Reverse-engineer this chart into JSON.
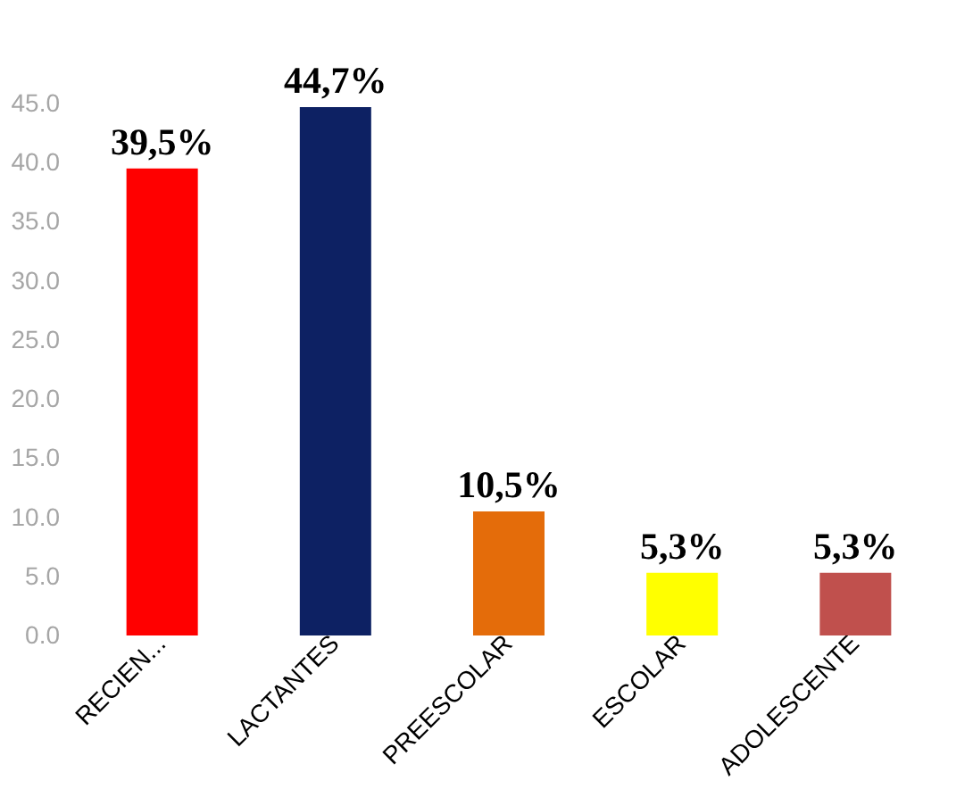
{
  "chart_data": {
    "type": "bar",
    "categories": [
      "RECIEN...",
      "LACTANTES",
      "PREESCOLAR",
      "ESCOLAR",
      "ADOLESCENTE"
    ],
    "values": [
      39.5,
      44.7,
      10.5,
      5.3,
      5.3
    ],
    "colors": [
      "#ff0000",
      "#0d2163",
      "#e46c0a",
      "#ffff00",
      "#c0504d"
    ],
    "value_labels": [
      "39,5%",
      "44,7%",
      "10,5%",
      "5,3%",
      "5,3%"
    ],
    "ylim": [
      0,
      45
    ],
    "yticks": [
      {
        "value": 0,
        "label": "0.0"
      },
      {
        "value": 5,
        "label": "5.0"
      },
      {
        "value": 10,
        "label": "10.0"
      },
      {
        "value": 15,
        "label": "15.0"
      },
      {
        "value": 20,
        "label": "20.0"
      },
      {
        "value": 25,
        "label": "25.0"
      },
      {
        "value": 30,
        "label": "30.0"
      },
      {
        "value": 35,
        "label": "35.0"
      },
      {
        "value": 40,
        "label": "40.0"
      },
      {
        "value": 45,
        "label": "45.0"
      }
    ],
    "grid": false
  }
}
